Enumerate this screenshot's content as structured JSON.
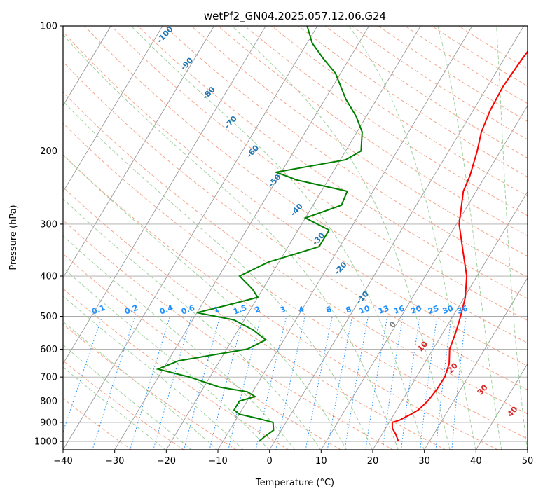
{
  "chart_data": {
    "type": "skew-t",
    "title": "wetPf2_GN04.2025.057.12.06.G24",
    "xlabel": "Temperature (°C)",
    "ylabel": "Pressure (hPa)",
    "xlim": [
      -40,
      50
    ],
    "ylim": [
      1050,
      100
    ],
    "y_scale": "log",
    "grid": true,
    "x_ticks": [
      -40,
      -30,
      -20,
      -10,
      0,
      10,
      20,
      30,
      40,
      50
    ],
    "x_tick_labels": [
      "−40",
      "−30",
      "−20",
      "−10",
      "0",
      "10",
      "20",
      "30",
      "40",
      "50"
    ],
    "y_ticks": [
      100,
      200,
      300,
      400,
      500,
      600,
      700,
      800,
      900,
      1000
    ],
    "y_tick_labels": [
      "100",
      "200",
      "300",
      "400",
      "500",
      "600",
      "700",
      "800",
      "900",
      "1000"
    ],
    "series": [
      {
        "color": "#ff0000",
        "points": [
          {
            "p": 1000,
            "t": 24
          },
          {
            "p": 960,
            "t": 22.6
          },
          {
            "p": 930,
            "t": 21.3
          },
          {
            "p": 900,
            "t": 20.6
          },
          {
            "p": 890,
            "t": 21.7
          },
          {
            "p": 860,
            "t": 23.3
          },
          {
            "p": 840,
            "t": 24.2
          },
          {
            "p": 800,
            "t": 25
          },
          {
            "p": 750,
            "t": 25.4
          },
          {
            "p": 700,
            "t": 25.5
          },
          {
            "p": 650,
            "t": 24.8
          },
          {
            "p": 600,
            "t": 23.2
          },
          {
            "p": 550,
            "t": 22.5
          },
          {
            "p": 500,
            "t": 21.5
          },
          {
            "p": 450,
            "t": 20.2
          },
          {
            "p": 400,
            "t": 18
          },
          {
            "p": 350,
            "t": 14.5
          },
          {
            "p": 300,
            "t": 10.5
          },
          {
            "p": 250,
            "t": 7.5
          },
          {
            "p": 230,
            "t": 7
          },
          {
            "p": 200,
            "t": 5.5
          },
          {
            "p": 180,
            "t": 4.1
          },
          {
            "p": 160,
            "t": 3.3
          },
          {
            "p": 140,
            "t": 3
          },
          {
            "p": 120,
            "t": 3.5
          },
          {
            "p": 100,
            "t": 4.5
          }
        ]
      },
      {
        "color": "#008000",
        "points": [
          {
            "p": 1000,
            "t": -3
          },
          {
            "p": 975,
            "t": -2.5
          },
          {
            "p": 940,
            "t": -1.5
          },
          {
            "p": 920,
            "t": -2
          },
          {
            "p": 900,
            "t": -2.5
          },
          {
            "p": 880,
            "t": -6
          },
          {
            "p": 860,
            "t": -10
          },
          {
            "p": 840,
            "t": -11.5
          },
          {
            "p": 800,
            "t": -11.5
          },
          {
            "p": 780,
            "t": -9
          },
          {
            "p": 760,
            "t": -11
          },
          {
            "p": 740,
            "t": -17
          },
          {
            "p": 700,
            "t": -24
          },
          {
            "p": 670,
            "t": -31
          },
          {
            "p": 640,
            "t": -28
          },
          {
            "p": 600,
            "t": -16
          },
          {
            "p": 570,
            "t": -13.5
          },
          {
            "p": 540,
            "t": -17
          },
          {
            "p": 510,
            "t": -22
          },
          {
            "p": 490,
            "t": -30
          },
          {
            "p": 470,
            "t": -25
          },
          {
            "p": 450,
            "t": -20
          },
          {
            "p": 430,
            "t": -22
          },
          {
            "p": 400,
            "t": -26
          },
          {
            "p": 370,
            "t": -22
          },
          {
            "p": 340,
            "t": -14
          },
          {
            "p": 310,
            "t": -14
          },
          {
            "p": 290,
            "t": -20
          },
          {
            "p": 270,
            "t": -14.5
          },
          {
            "p": 250,
            "t": -15
          },
          {
            "p": 235,
            "t": -26
          },
          {
            "p": 225,
            "t": -31
          },
          {
            "p": 210,
            "t": -19
          },
          {
            "p": 200,
            "t": -17
          },
          {
            "p": 180,
            "t": -19
          },
          {
            "p": 165,
            "t": -22
          },
          {
            "p": 150,
            "t": -26
          },
          {
            "p": 130,
            "t": -31
          },
          {
            "p": 120,
            "t": -35
          },
          {
            "p": 110,
            "t": -39
          },
          {
            "p": 100,
            "t": -42
          }
        ]
      }
    ],
    "dry_adiabat_labels": [
      "-100",
      "-90",
      "-80",
      "-70",
      "-60",
      "-50",
      "-40",
      "-30",
      "-20",
      "-10"
    ],
    "moist_adiabat_labels": [
      "0",
      "10",
      "20",
      "30",
      "40"
    ],
    "mixing_ratio_labels": [
      "0.1",
      "0.2",
      "0.4",
      "0.6",
      "1",
      "1.5",
      "2",
      "3",
      "4",
      "6",
      "8",
      "10",
      "13",
      "16",
      "20",
      "25",
      "30",
      "36"
    ],
    "colors": {
      "isotherm": "#999999",
      "isobar": "#aaaaaa",
      "dry_adiabat": "#f4a58a",
      "moist_adiabat": "#9fd19f",
      "mixing_ratio": "#1e90ff",
      "dry_label": "#1f77b4",
      "mixing_label": "#1e90ff",
      "moist_label": "#d62728",
      "moist_zero_label": "#808080"
    }
  }
}
